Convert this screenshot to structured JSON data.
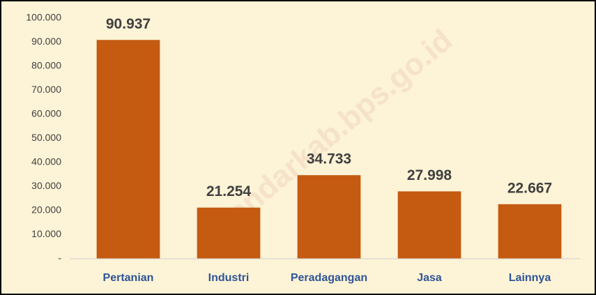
{
  "chart_data": {
    "type": "bar",
    "categories": [
      "Pertanian",
      "Industri",
      "Peradagangan",
      "Jasa",
      "Lainnya"
    ],
    "values": [
      90937,
      21254,
      34733,
      27998,
      22667
    ],
    "value_labels": [
      "90.937",
      "21.254",
      "34.733",
      "27.998",
      "22.667"
    ],
    "color": "#c55a11",
    "ylim": [
      0,
      100000
    ],
    "yticks": [
      {
        "value": 0,
        "label": "-"
      },
      {
        "value": 10000,
        "label": "10.000"
      },
      {
        "value": 20000,
        "label": "20.000"
      },
      {
        "value": 30000,
        "label": "30.000"
      },
      {
        "value": 40000,
        "label": "40.000"
      },
      {
        "value": 50000,
        "label": "50.000"
      },
      {
        "value": 60000,
        "label": "60.000"
      },
      {
        "value": 70000,
        "label": "70.000"
      },
      {
        "value": 80000,
        "label": "80.000"
      },
      {
        "value": 90000,
        "label": "90.000"
      },
      {
        "value": 100000,
        "label": "100.000"
      }
    ],
    "grid": false,
    "watermark": "imandarkab.bps.go.id"
  }
}
